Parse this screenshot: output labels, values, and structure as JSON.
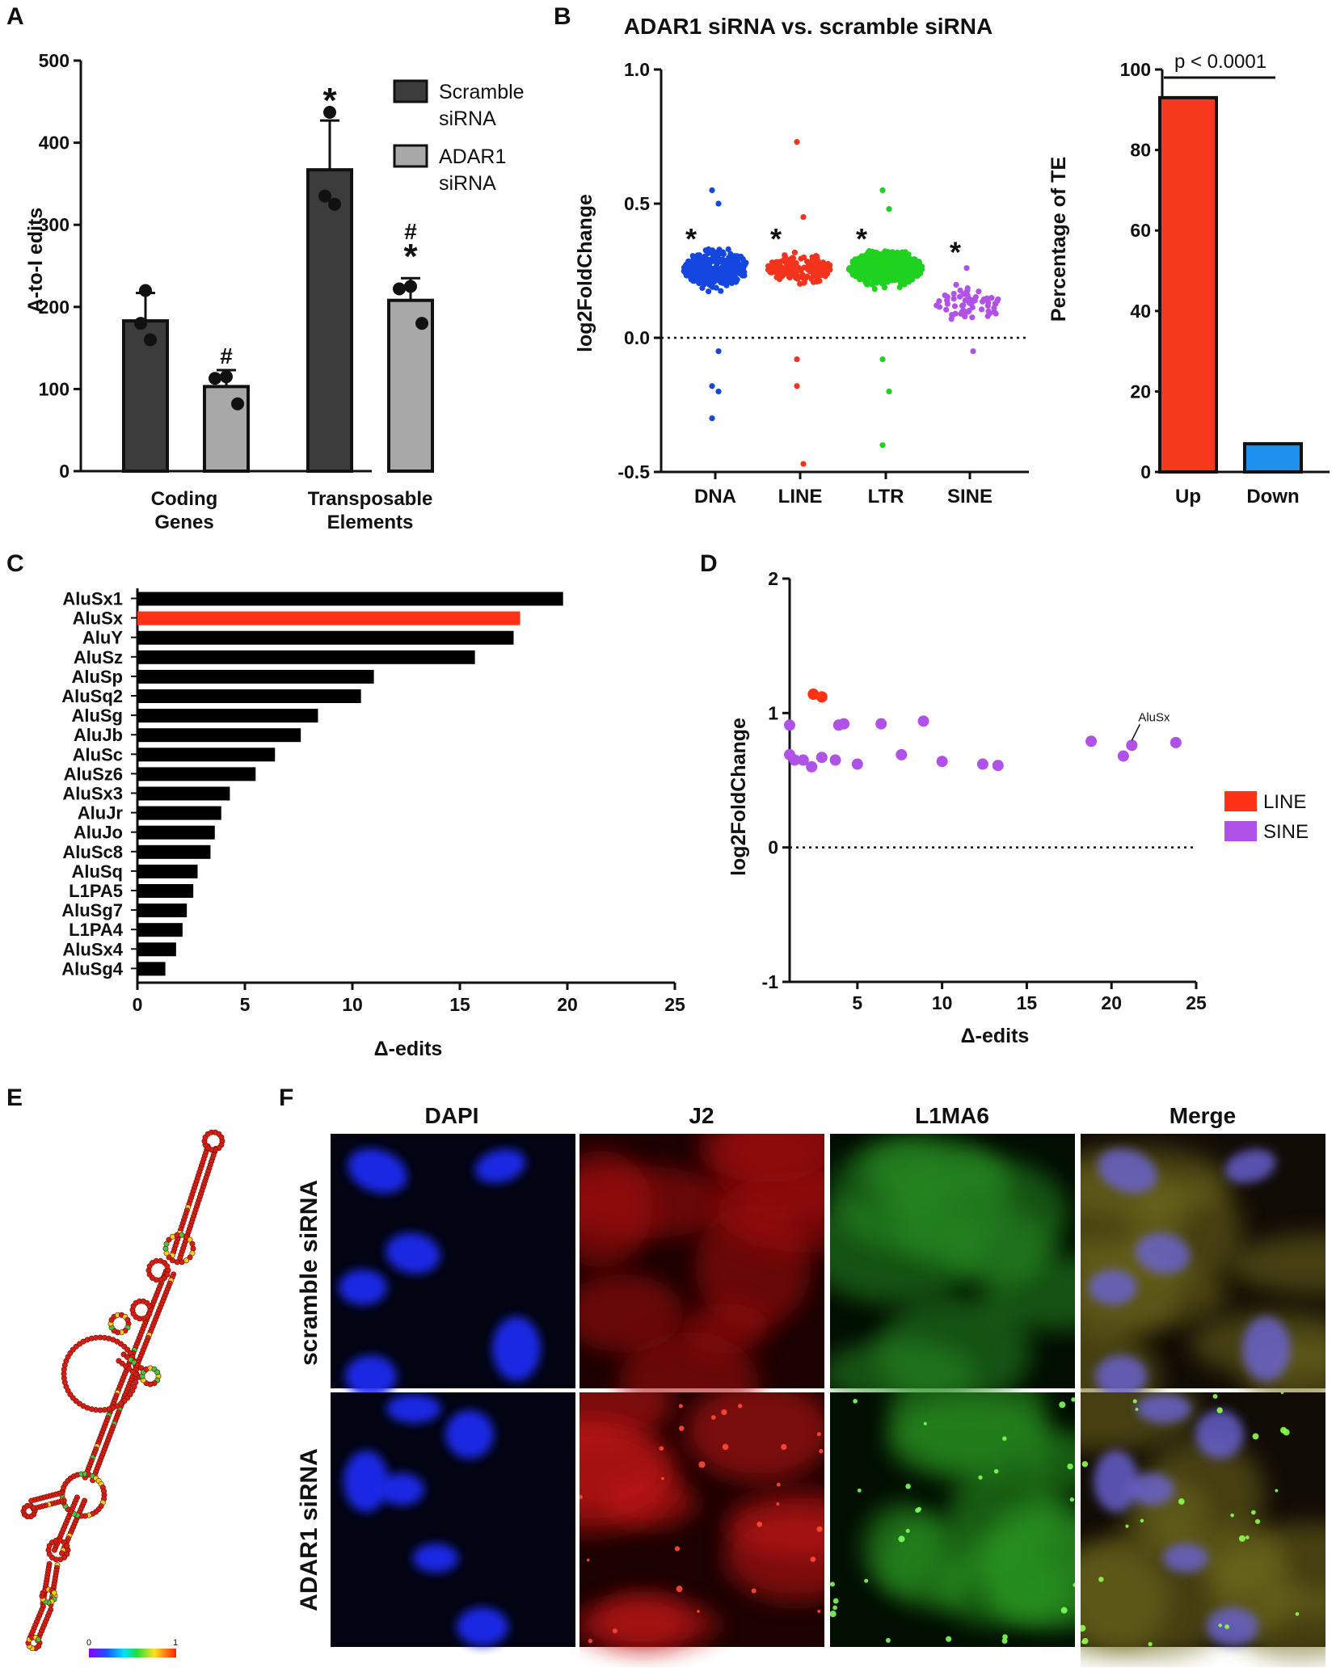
{
  "panels": {
    "A": "A",
    "B": "B",
    "C": "C",
    "D": "D",
    "E": "E",
    "F": "F"
  },
  "panel_b_title": "ADAR1 siRNA vs. scramble siRNA",
  "colors": {
    "dark_bar": "#3c3c3c",
    "light_bar": "#a8a8a8",
    "dna": "#1446e0",
    "line": "#f3331c",
    "ltr": "#1fd21f",
    "sine": "#b052e8",
    "up": "#f53a1c",
    "down": "#1e90ee",
    "highlight": "#ff3218"
  },
  "chart_data": [
    {
      "id": "A",
      "type": "bar",
      "ylabel": "A-to-I edits",
      "ylim": [
        0,
        500
      ],
      "yticks": [
        "0",
        "100",
        "200",
        "300",
        "400",
        "500"
      ],
      "groups": [
        {
          "label_lines": [
            "Coding",
            "Genes"
          ]
        },
        {
          "label_lines": [
            "Transposable",
            "Elements"
          ]
        }
      ],
      "legend": [
        {
          "lines": [
            "Scramble",
            "siRNA"
          ]
        },
        {
          "lines": [
            "ADAR1",
            "siRNA"
          ]
        }
      ],
      "series": [
        {
          "name": "Scramble siRNA",
          "values": [
            183,
            367
          ],
          "errors": [
            34,
            60
          ],
          "points": [
            [
              220,
              180,
              160
            ],
            [
              437,
              335,
              325
            ]
          ]
        },
        {
          "name": "ADAR1 siRNA",
          "values": [
            103,
            208
          ],
          "errors": [
            20,
            27
          ],
          "points": [
            [
              115,
              113,
              82
            ],
            [
              225,
              222,
              180
            ]
          ]
        }
      ],
      "annotations": {
        "star": "*",
        "hash": "#"
      }
    },
    {
      "id": "B-left",
      "type": "scatter",
      "ylabel": "log2FoldChange",
      "ylim": [
        -0.5,
        1.0
      ],
      "yticks": [
        "-0.5",
        "0.0",
        "0.5",
        "1.0"
      ],
      "categories": [
        "DNA",
        "LINE",
        "LTR",
        "SINE"
      ],
      "centers": [
        0.26,
        0.26,
        0.26,
        0.13
      ],
      "spread": [
        0.06,
        0.045,
        0.05,
        0.06
      ],
      "counts": [
        320,
        180,
        600,
        60
      ],
      "outliers": [
        [
          0.55,
          0.5,
          -0.18,
          -0.2,
          -0.3,
          -0.05
        ],
        [
          0.73,
          0.45,
          -0.18,
          -0.47,
          -0.08
        ],
        [
          0.55,
          0.48,
          -0.08,
          -0.2,
          -0.4
        ],
        [
          0.26,
          -0.05
        ]
      ],
      "star": "*"
    },
    {
      "id": "B-right",
      "type": "bar",
      "ylabel": "Percentage of TE",
      "ylim": [
        0,
        100
      ],
      "yticks": [
        "0",
        "20",
        "40",
        "60",
        "80",
        "100"
      ],
      "categories": [
        "Up",
        "Down"
      ],
      "values": [
        93,
        7
      ],
      "annotation": "p < 0.0001"
    },
    {
      "id": "C",
      "type": "bar",
      "orientation": "horizontal",
      "xlabel": "Δ-edits",
      "xlim": [
        0,
        25
      ],
      "xticks": [
        "0",
        "5",
        "10",
        "15",
        "20",
        "25"
      ],
      "categories": [
        "AluSx1",
        "AluSx",
        "AluY",
        "AluSz",
        "AluSp",
        "AluSq2",
        "AluSg",
        "AluJb",
        "AluSc",
        "AluSz6",
        "AluSx3",
        "AluJr",
        "AluJo",
        "AluSc8",
        "AluSq",
        "L1PA5",
        "AluSg7",
        "L1PA4",
        "AluSx4",
        "AluSg4"
      ],
      "values": [
        19.8,
        17.8,
        17.5,
        15.7,
        11.0,
        10.4,
        8.4,
        7.6,
        6.4,
        5.5,
        4.3,
        3.9,
        3.6,
        3.4,
        2.8,
        2.6,
        2.3,
        2.1,
        1.8,
        1.3
      ],
      "highlight": "AluSx"
    },
    {
      "id": "D",
      "type": "scatter",
      "xlabel": "Δ-edits",
      "ylabel": "log2FoldChange",
      "xlim": [
        1,
        25
      ],
      "ylim": [
        -1,
        2
      ],
      "xticks": [
        "5",
        "10",
        "15",
        "20",
        "25"
      ],
      "xtick_values": [
        5,
        10,
        15,
        20,
        25
      ],
      "yticks": [
        "-1",
        "0",
        "1",
        "2"
      ],
      "legend": [
        "LINE",
        "SINE"
      ],
      "series": [
        {
          "name": "LINE",
          "x": [
            2.4,
            2.9
          ],
          "y": [
            1.14,
            1.12
          ]
        },
        {
          "name": "SINE",
          "x": [
            1.0,
            1.0,
            1.3,
            1.8,
            2.3,
            2.9,
            3.7,
            3.9,
            4.2,
            5.0,
            6.4,
            7.6,
            8.9,
            10.0,
            12.4,
            13.3,
            18.8,
            20.7,
            21.2,
            23.8
          ],
          "y": [
            0.91,
            0.69,
            0.65,
            0.65,
            0.6,
            0.67,
            0.65,
            0.91,
            0.92,
            0.62,
            0.92,
            0.69,
            0.94,
            0.64,
            0.62,
            0.61,
            0.79,
            0.68,
            0.76,
            0.78
          ]
        }
      ],
      "annotation": "AluSx"
    }
  ],
  "panel_e": {
    "colorbar_min": "0",
    "colorbar_max": "1"
  },
  "panel_f": {
    "columns": [
      "DAPI",
      "J2",
      "L1MA6",
      "Merge"
    ],
    "rows": [
      "scramble siRNA",
      "ADAR1 siRNA"
    ]
  }
}
